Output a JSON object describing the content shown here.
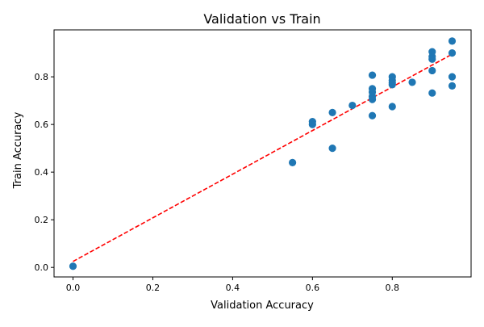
{
  "chart_data": {
    "type": "scatter",
    "title": "Validation vs Train",
    "xlabel": "Validation Accuracy",
    "ylabel": "Train Accuracy",
    "xlim": [
      -0.0475,
      0.9975
    ],
    "ylim": [
      -0.04,
      0.997
    ],
    "xticks": [
      0.0,
      0.2,
      0.4,
      0.6,
      0.8
    ],
    "xtick_labels": [
      "0.0",
      "0.2",
      "0.4",
      "0.6",
      "0.8"
    ],
    "yticks": [
      0.0,
      0.2,
      0.4,
      0.6,
      0.8
    ],
    "ytick_labels": [
      "0.0",
      "0.2",
      "0.4",
      "0.6",
      "0.8"
    ],
    "grid": false,
    "legend": "none",
    "point_color": "#1f77b4",
    "trend_color": "#ff0000",
    "points": [
      {
        "x": 0.0,
        "y": 0.005
      },
      {
        "x": 0.55,
        "y": 0.44
      },
      {
        "x": 0.6,
        "y": 0.6
      },
      {
        "x": 0.6,
        "y": 0.612
      },
      {
        "x": 0.65,
        "y": 0.5
      },
      {
        "x": 0.65,
        "y": 0.65
      },
      {
        "x": 0.7,
        "y": 0.68
      },
      {
        "x": 0.75,
        "y": 0.637
      },
      {
        "x": 0.75,
        "y": 0.705
      },
      {
        "x": 0.75,
        "y": 0.718
      },
      {
        "x": 0.75,
        "y": 0.736
      },
      {
        "x": 0.75,
        "y": 0.75
      },
      {
        "x": 0.75,
        "y": 0.807
      },
      {
        "x": 0.8,
        "y": 0.675
      },
      {
        "x": 0.8,
        "y": 0.767
      },
      {
        "x": 0.8,
        "y": 0.775
      },
      {
        "x": 0.8,
        "y": 0.785
      },
      {
        "x": 0.8,
        "y": 0.8
      },
      {
        "x": 0.85,
        "y": 0.777
      },
      {
        "x": 0.9,
        "y": 0.732
      },
      {
        "x": 0.9,
        "y": 0.826
      },
      {
        "x": 0.9,
        "y": 0.874
      },
      {
        "x": 0.9,
        "y": 0.885
      },
      {
        "x": 0.9,
        "y": 0.905
      },
      {
        "x": 0.95,
        "y": 0.762
      },
      {
        "x": 0.95,
        "y": 0.8
      },
      {
        "x": 0.95,
        "y": 0.9
      },
      {
        "x": 0.95,
        "y": 0.95
      }
    ],
    "trend_line": {
      "x": [
        0.0,
        0.95
      ],
      "y": [
        0.025,
        0.895
      ]
    }
  }
}
